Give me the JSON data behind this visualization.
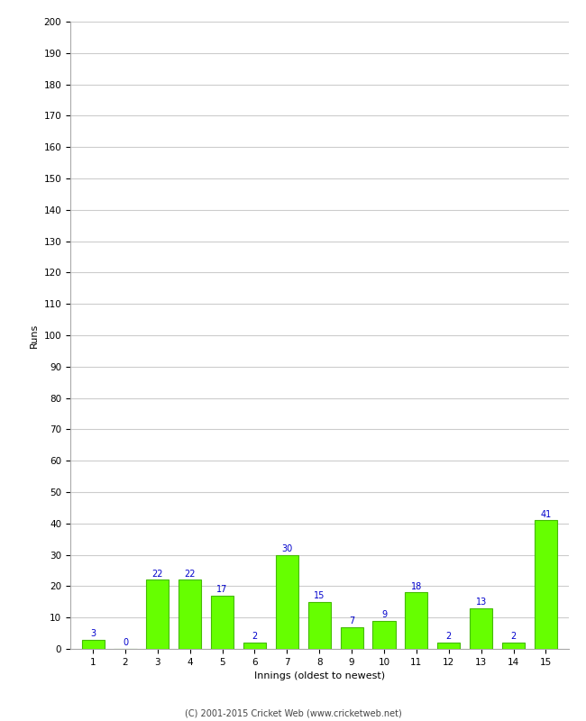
{
  "innings": [
    1,
    2,
    3,
    4,
    5,
    6,
    7,
    8,
    9,
    10,
    11,
    12,
    13,
    14,
    15
  ],
  "runs": [
    3,
    0,
    22,
    22,
    17,
    2,
    30,
    15,
    7,
    9,
    18,
    2,
    13,
    2,
    41
  ],
  "bar_color": "#66ff00",
  "bar_edge_color": "#44bb00",
  "xlabel": "Innings (oldest to newest)",
  "ylabel": "Runs",
  "ylim": [
    0,
    200
  ],
  "yticks": [
    0,
    10,
    20,
    30,
    40,
    50,
    60,
    70,
    80,
    90,
    100,
    110,
    120,
    130,
    140,
    150,
    160,
    170,
    180,
    190,
    200
  ],
  "label_color": "#0000cc",
  "label_fontsize": 7,
  "axis_fontsize": 8,
  "tick_fontsize": 7.5,
  "footer": "(C) 2001-2015 Cricket Web (www.cricketweb.net)",
  "footer_fontsize": 7,
  "background_color": "#ffffff",
  "grid_color": "#cccccc"
}
